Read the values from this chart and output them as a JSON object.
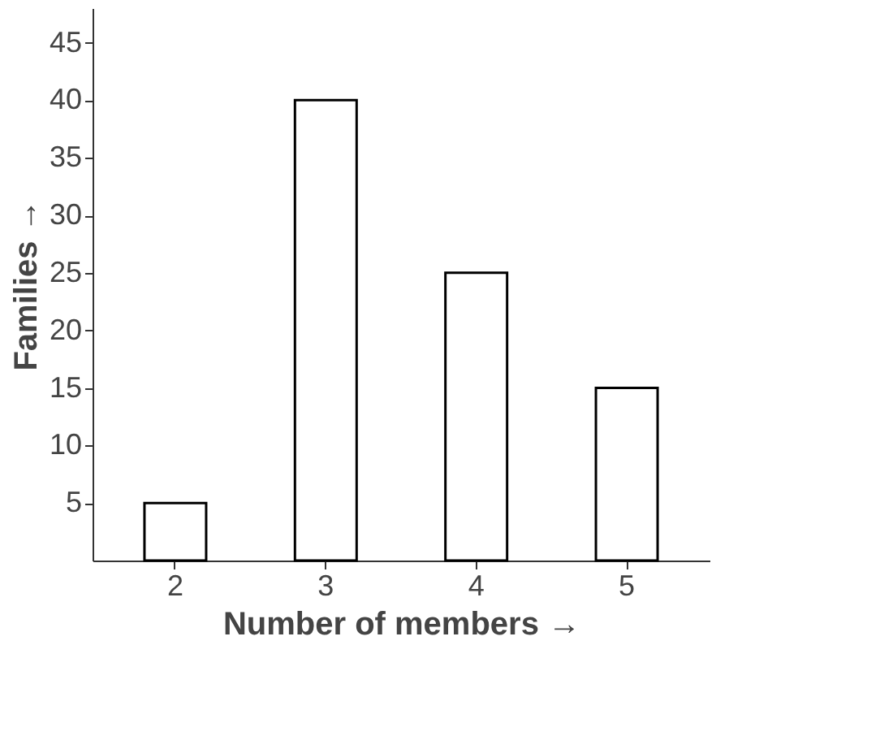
{
  "chart_data": {
    "type": "bar",
    "xlabel": "Number of members →",
    "ylabel": "Families →",
    "categories": [
      "2",
      "3",
      "4",
      "5"
    ],
    "values": [
      5,
      40,
      25,
      15
    ],
    "color": "#ffffff",
    "ylim": [
      0,
      48
    ],
    "yticks": [
      5,
      10,
      15,
      20,
      25,
      30,
      35,
      40,
      45
    ],
    "grid": false
  }
}
